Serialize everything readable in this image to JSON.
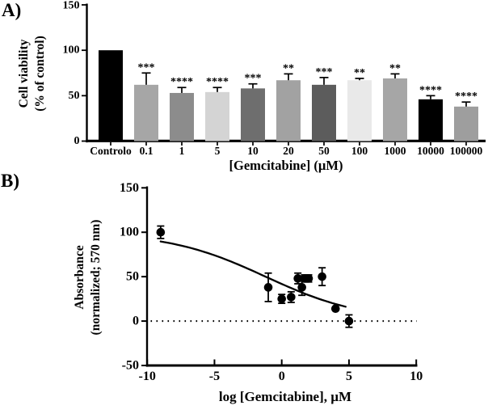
{
  "figure": {
    "panel_a_label": "A)",
    "panel_b_label": "B)",
    "background_color": "#ffffff",
    "ink_color": "#000000"
  },
  "chart_data": [
    {
      "type": "bar",
      "panel": "A",
      "ylabel_line1": "Cell viability",
      "ylabel_line2": "(% of control)",
      "xlabel": "[Gemcitabine] (µM)",
      "ylim": [
        0,
        150
      ],
      "yticks": [
        0,
        50,
        100,
        150
      ],
      "grid": false,
      "legend": "none",
      "categories": [
        "Controlo",
        "0.1",
        "1",
        "5",
        "10",
        "20",
        "50",
        "100",
        "1000",
        "10000",
        "100000"
      ],
      "values": [
        100,
        62,
        53,
        54,
        58,
        67,
        62,
        67,
        69,
        46,
        38
      ],
      "errors_plus": [
        0,
        13,
        6,
        5,
        5,
        7,
        8,
        2,
        5,
        4,
        5
      ],
      "significance": [
        "",
        "***",
        "****",
        "****",
        "***",
        "**",
        "***",
        "**",
        "**",
        "****",
        "****"
      ],
      "bar_colors": [
        "#000000",
        "#a6a6a6",
        "#8c8c8c",
        "#d4d4d4",
        "#6e6e6e",
        "#a2a2a2",
        "#5c5c5c",
        "#e9e9e9",
        "#a6a6a6",
        "#000000",
        "#9e9e9e"
      ]
    },
    {
      "type": "scatter",
      "panel": "B",
      "ylabel_line1": "Absorbance",
      "ylabel_line2": "(normalized; 570 nm)",
      "xlabel": "log [Gemcitabine], µM",
      "xlim": [
        -10,
        10
      ],
      "ylim": [
        -50,
        150
      ],
      "xticks": [
        -10,
        -5,
        0,
        5,
        10
      ],
      "yticks": [
        -50,
        0,
        50,
        100,
        150
      ],
      "grid": false,
      "legend": "none",
      "marker": "filled-circle",
      "points": [
        {
          "x": -9,
          "y": 100,
          "err": 7
        },
        {
          "x": -1,
          "y": 38,
          "err": 16
        },
        {
          "x": 0,
          "y": 25,
          "err": 5
        },
        {
          "x": 0.7,
          "y": 27,
          "err": 6
        },
        {
          "x": 1.2,
          "y": 48,
          "err": 6
        },
        {
          "x": 1.5,
          "y": 38,
          "err": 9
        },
        {
          "x": 1.7,
          "y": 48,
          "err": 4
        },
        {
          "x": 2,
          "y": 48,
          "err": 4
        },
        {
          "x": 3,
          "y": 50,
          "err": 10
        },
        {
          "x": 4,
          "y": 14,
          "err": 0
        },
        {
          "x": 5,
          "y": 0,
          "err": 7
        }
      ],
      "fit_curve": {
        "model": "4PL",
        "top": 100,
        "bottom": 0,
        "logIC50": -1.2,
        "hillslope": 0.12,
        "x_start": -9,
        "x_end": 4.75
      },
      "baseline": {
        "y": 0,
        "style": "dotted"
      }
    }
  ]
}
